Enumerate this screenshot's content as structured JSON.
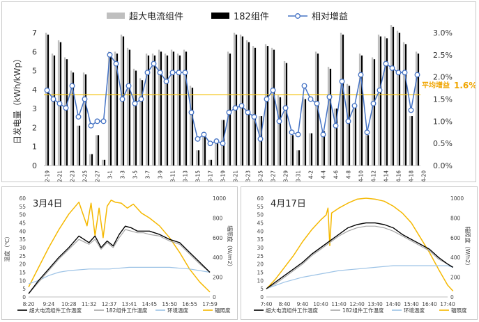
{
  "chart_data": [
    {
      "type": "bar",
      "legend": [
        "超大电流组件",
        "182组件",
        "相对增益"
      ],
      "ylabel_left": "日发电量（kWh/kWp）",
      "ylim_left": [
        0,
        7
      ],
      "yticks_left": [
        "0",
        "1",
        "2",
        "3",
        "4",
        "5",
        "6",
        "7"
      ],
      "ylim_right": [
        0,
        3.0
      ],
      "yticks_right": [
        "0.0%",
        "0.5%",
        "1.0%",
        "1.5%",
        "2.0%",
        "2.5%",
        "3.0%"
      ],
      "annotation_label": "平均增益",
      "annotation_value": "1.6%",
      "average_gain": 1.6,
      "x_tick_labels": [
        "2-19",
        "2-21",
        "2-23",
        "2-25",
        "2-27",
        "3-1",
        "3-3",
        "3-5",
        "3-7",
        "3-9",
        "3-11",
        "3-13",
        "3-15",
        "3-17",
        "3-19",
        "3-21",
        "3-23",
        "3-25",
        "3-27",
        "3-29",
        "3-31",
        "4-2",
        "4-4",
        "4-6",
        "4-8",
        "4-10",
        "4-12",
        "4-14",
        "4-16",
        "4-18",
        "4-20"
      ],
      "series": [
        {
          "name": "超大电流组件",
          "values": [
            7.0,
            5.9,
            6.6,
            5.7,
            5.0,
            2.1,
            4.9,
            0.6,
            1.6,
            0.3,
            6.0,
            6.0,
            6.9,
            6.2,
            5.1,
            4.6,
            5.9,
            5.9,
            6.1,
            5.9,
            6.1,
            5.9,
            6.1,
            4.2,
            0.8,
            1.5,
            0.3,
            1.2,
            2.4,
            6.0,
            7.0,
            6.9,
            6.6,
            6.3,
            2.6,
            6.4,
            6.2,
            3.7,
            5.5,
            1.6,
            0.8,
            3.6,
            1.7,
            6.0,
            1.8,
            5.2,
            3.0,
            7.0,
            4.3,
            3.2,
            5.9,
            1.6,
            5.7,
            6.9,
            6.8,
            7.4,
            7.1,
            6.5,
            2.6,
            6.0
          ]
        },
        {
          "name": "182组件",
          "values": [
            6.9,
            5.8,
            6.5,
            5.6,
            4.9,
            2.1,
            4.8,
            0.6,
            1.6,
            0.3,
            5.9,
            5.9,
            6.8,
            6.1,
            5.0,
            4.5,
            5.8,
            5.8,
            6.0,
            5.8,
            6.0,
            5.8,
            6.0,
            4.1,
            0.8,
            1.5,
            0.3,
            1.2,
            2.4,
            5.9,
            6.9,
            6.8,
            6.5,
            6.2,
            2.6,
            6.3,
            6.1,
            3.6,
            5.4,
            1.6,
            0.8,
            3.5,
            1.7,
            5.9,
            1.8,
            5.1,
            3.0,
            6.9,
            4.2,
            3.1,
            5.8,
            1.6,
            5.6,
            6.8,
            6.7,
            7.3,
            7.0,
            6.4,
            2.6,
            5.9
          ]
        },
        {
          "name": "相对增益",
          "values": [
            1.7,
            1.5,
            1.4,
            1.3,
            1.8,
            1.1,
            1.5,
            0.9,
            1.0,
            1.0,
            2.5,
            2.3,
            1.5,
            1.8,
            1.4,
            1.5,
            2.1,
            2.3,
            2.1,
            1.9,
            2.1,
            2.1,
            2.1,
            1.2,
            0.6,
            0.7,
            0.5,
            0.55,
            0.5,
            1.2,
            1.3,
            1.35,
            1.2,
            1.1,
            0.6,
            1.5,
            1.7,
            1.0,
            1.3,
            0.75,
            0.7,
            1.8,
            1.5,
            1.4,
            0.7,
            1.55,
            0.9,
            1.9,
            1.0,
            1.35,
            2.05,
            0.75,
            1.4,
            1.7,
            2.3,
            2.2,
            2.1,
            2.1,
            1.25,
            2.05
          ]
        }
      ]
    },
    {
      "type": "line",
      "title": "3月4日",
      "ylabel_left": "温度（℃）",
      "ylabel_right": "辐照度（W/m2）",
      "ylim_left": [
        0,
        60
      ],
      "yticks_left": [
        "0",
        "5",
        "10",
        "15",
        "20",
        "25",
        "30",
        "35",
        "40",
        "45",
        "50",
        "55",
        "60"
      ],
      "ylim_right": [
        0,
        1000
      ],
      "yticks_right": [
        "0",
        "200",
        "400",
        "600",
        "800",
        "1000"
      ],
      "x_tick_labels": [
        "8:20",
        "9:24",
        "10:28",
        "11:32",
        "12:37",
        "13:41",
        "14:45",
        "15:50",
        "16:55",
        "17:59"
      ],
      "legend": [
        "超大电流组件工作温度",
        "182组件工作温度",
        "环境温度",
        "辐照度"
      ],
      "colors": {
        "large_current": "#000000",
        "m182": "#a6a6a6",
        "ambient": "#9dc3e6",
        "irradiance": "#f5b800"
      },
      "series": [
        {
          "name": "超大电流组件工作温度",
          "x": [
            0,
            0.5,
            1,
            1.5,
            2,
            2.5,
            3,
            3.3,
            3.6,
            3.9,
            4.2,
            4.5,
            4.8,
            5.1,
            5.4,
            5.7,
            6,
            6.5,
            7,
            7.5,
            8,
            8.5,
            9
          ],
          "values": [
            2,
            10,
            17,
            24,
            30,
            37,
            33,
            37,
            30,
            34,
            31,
            38,
            43,
            42,
            40,
            40,
            40,
            38,
            35,
            33,
            27,
            21,
            15
          ]
        },
        {
          "name": "182组件工作温度",
          "x": [
            0,
            0.5,
            1,
            1.5,
            2,
            2.5,
            3,
            3.3,
            3.6,
            3.9,
            4.2,
            4.5,
            4.8,
            5.1,
            5.4,
            5.7,
            6,
            6.5,
            7,
            7.5,
            8,
            8.5,
            9
          ],
          "values": [
            2,
            9,
            16,
            23,
            29,
            35,
            32,
            35,
            29,
            33,
            30,
            36,
            41,
            40,
            39,
            39,
            38,
            37,
            34,
            32,
            26,
            20,
            15
          ]
        },
        {
          "name": "环境温度",
          "x": [
            0,
            0.5,
            1,
            1.5,
            2,
            3,
            4,
            5,
            6,
            7,
            8,
            8.5,
            9
          ],
          "values": [
            8,
            10,
            13,
            15,
            16,
            17,
            17,
            18,
            18,
            18,
            17,
            16,
            15
          ]
        },
        {
          "name": "辐照度",
          "x": [
            0,
            0.5,
            1,
            1.5,
            2,
            2.5,
            2.9,
            3.1,
            3.3,
            3.5,
            3.7,
            3.9,
            4.1,
            4.3,
            4.6,
            4.9,
            5.2,
            5.6,
            6,
            6.5,
            7,
            7.5,
            8,
            8.5,
            9
          ],
          "values": [
            100,
            300,
            500,
            680,
            840,
            960,
            720,
            950,
            620,
            900,
            600,
            920,
            980,
            960,
            950,
            900,
            940,
            850,
            800,
            720,
            600,
            450,
            280,
            150,
            50
          ]
        }
      ]
    },
    {
      "type": "line",
      "title": "4月17日",
      "ylabel_right": "辐照度（W/h2）",
      "ylim_left": [
        0,
        60
      ],
      "yticks_left": [
        "0",
        "5",
        "10",
        "15",
        "20",
        "25",
        "30",
        "35",
        "40",
        "45",
        "50",
        "55",
        "60"
      ],
      "ylim_right": [
        0,
        1000
      ],
      "yticks_right": [
        "0",
        "200",
        "400",
        "600",
        "800",
        "1000"
      ],
      "x_tick_labels": [
        "7:40",
        "8:40",
        "9:40",
        "10:40",
        "11:40",
        "12:40",
        "13:40",
        "14:40",
        "15:40",
        "16:40",
        "17:40"
      ],
      "legend": [
        "超大电流组件工作温度",
        "182组件工作温度",
        "环境温度",
        "辐照度"
      ],
      "series": [
        {
          "name": "超大电流组件工作温度",
          "x": [
            0,
            0.5,
            1,
            1.5,
            2,
            2.5,
            3,
            3.5,
            4,
            4.5,
            5,
            5.5,
            6,
            6.5,
            7,
            7.5,
            8,
            8.5,
            9,
            9.5,
            10,
            10.3
          ],
          "values": [
            5,
            9,
            13,
            17,
            21,
            26,
            30,
            34,
            38,
            42,
            44,
            45,
            45,
            44,
            42,
            38,
            35,
            32,
            29,
            24,
            20,
            18
          ]
        },
        {
          "name": "182组件工作温度",
          "x": [
            0,
            0.5,
            1,
            1.5,
            2,
            2.5,
            3,
            3.5,
            4,
            4.5,
            5,
            5.5,
            6,
            6.5,
            7,
            7.5,
            8,
            8.5,
            9,
            9.5,
            10,
            10.3
          ],
          "values": [
            5,
            8,
            12,
            16,
            20,
            25,
            29,
            33,
            37,
            40,
            42,
            43,
            43,
            42,
            40,
            37,
            34,
            31,
            28,
            23,
            20,
            18
          ]
        },
        {
          "name": "环境温度",
          "x": [
            0,
            1,
            2,
            3,
            4,
            5,
            6,
            7,
            8,
            9,
            10,
            10.3
          ],
          "values": [
            5,
            9,
            12,
            14,
            16,
            17,
            18,
            19,
            19,
            19,
            19,
            18
          ]
        },
        {
          "name": "辐照度",
          "x": [
            0,
            0.5,
            1,
            1.5,
            2,
            2.5,
            3,
            3.3,
            3.4,
            3.5,
            3.6,
            4,
            4.5,
            5,
            5.5,
            6,
            6.5,
            7,
            7.5,
            8,
            8.5,
            9,
            9.5,
            10,
            10.3
          ],
          "values": [
            80,
            180,
            300,
            420,
            560,
            680,
            780,
            830,
            900,
            520,
            850,
            900,
            950,
            990,
            1000,
            990,
            970,
            920,
            850,
            750,
            600,
            450,
            280,
            120,
            60
          ]
        }
      ]
    }
  ]
}
